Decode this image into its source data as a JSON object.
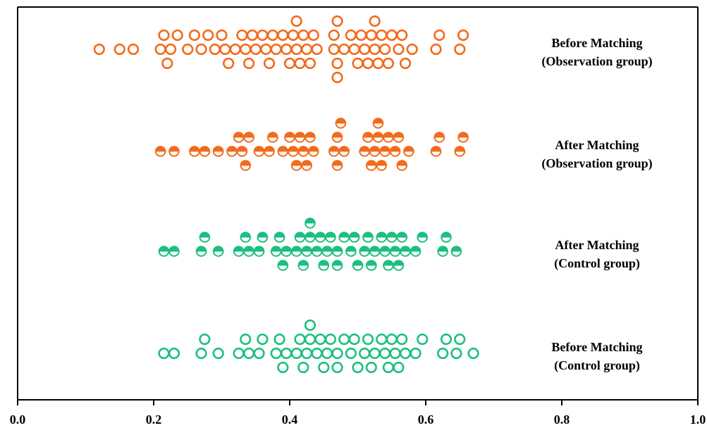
{
  "chart_data": {
    "type": "scatter",
    "subtype": "beeswarm",
    "title": "",
    "xlabel": "",
    "ylabel": "",
    "xlim": [
      0,
      1.0
    ],
    "x_ticks": [
      "0.0",
      "0.2",
      "0.4",
      "0.6",
      "0.8",
      "1.0"
    ],
    "grid": false,
    "legend": "none",
    "colors": {
      "observation": "#f26a1b",
      "control": "#1cbf7f"
    },
    "groups": [
      {
        "label_line1": "Before Matching",
        "label_line2": "(Observation group)",
        "marker": "hollow",
        "color_key": "observation",
        "x": [
          0.12,
          0.15,
          0.17,
          0.21,
          0.215,
          0.22,
          0.225,
          0.235,
          0.25,
          0.26,
          0.27,
          0.28,
          0.29,
          0.3,
          0.305,
          0.31,
          0.32,
          0.33,
          0.335,
          0.34,
          0.345,
          0.35,
          0.36,
          0.365,
          0.37,
          0.375,
          0.38,
          0.39,
          0.395,
          0.4,
          0.405,
          0.41,
          0.41,
          0.415,
          0.42,
          0.425,
          0.43,
          0.435,
          0.44,
          0.465,
          0.465,
          0.47,
          0.47,
          0.47,
          0.48,
          0.49,
          0.495,
          0.5,
          0.505,
          0.51,
          0.515,
          0.52,
          0.525,
          0.525,
          0.53,
          0.535,
          0.54,
          0.545,
          0.55,
          0.56,
          0.565,
          0.57,
          0.58,
          0.615,
          0.62,
          0.65,
          0.655
        ]
      },
      {
        "label_line1": "After Matching",
        "label_line2": "(Observation group)",
        "marker": "half-top",
        "color_key": "observation",
        "x": [
          0.21,
          0.23,
          0.26,
          0.275,
          0.295,
          0.315,
          0.325,
          0.33,
          0.335,
          0.34,
          0.355,
          0.37,
          0.375,
          0.39,
          0.4,
          0.405,
          0.41,
          0.415,
          0.42,
          0.425,
          0.43,
          0.435,
          0.465,
          0.47,
          0.47,
          0.475,
          0.48,
          0.51,
          0.515,
          0.52,
          0.525,
          0.53,
          0.53,
          0.535,
          0.54,
          0.545,
          0.555,
          0.56,
          0.565,
          0.575,
          0.615,
          0.62,
          0.65,
          0.655
        ]
      },
      {
        "label_line1": "After Matching",
        "label_line2": "(Control group)",
        "marker": "half-top",
        "color_key": "control",
        "x": [
          0.215,
          0.23,
          0.27,
          0.275,
          0.295,
          0.325,
          0.335,
          0.34,
          0.355,
          0.36,
          0.38,
          0.385,
          0.39,
          0.395,
          0.41,
          0.415,
          0.42,
          0.425,
          0.43,
          0.43,
          0.44,
          0.445,
          0.45,
          0.455,
          0.46,
          0.47,
          0.47,
          0.48,
          0.49,
          0.495,
          0.5,
          0.51,
          0.515,
          0.52,
          0.525,
          0.535,
          0.54,
          0.545,
          0.55,
          0.555,
          0.56,
          0.565,
          0.57,
          0.585,
          0.595,
          0.625,
          0.63,
          0.645
        ]
      },
      {
        "label_line1": "Before Matching",
        "label_line2": "(Control group)",
        "marker": "hollow",
        "color_key": "control",
        "x": [
          0.215,
          0.23,
          0.27,
          0.275,
          0.295,
          0.325,
          0.335,
          0.34,
          0.355,
          0.36,
          0.38,
          0.385,
          0.39,
          0.395,
          0.41,
          0.415,
          0.42,
          0.425,
          0.43,
          0.43,
          0.44,
          0.445,
          0.45,
          0.455,
          0.46,
          0.47,
          0.47,
          0.48,
          0.49,
          0.495,
          0.5,
          0.51,
          0.515,
          0.52,
          0.525,
          0.535,
          0.54,
          0.545,
          0.55,
          0.555,
          0.56,
          0.565,
          0.57,
          0.585,
          0.595,
          0.625,
          0.63,
          0.645,
          0.65,
          0.67
        ]
      }
    ]
  }
}
